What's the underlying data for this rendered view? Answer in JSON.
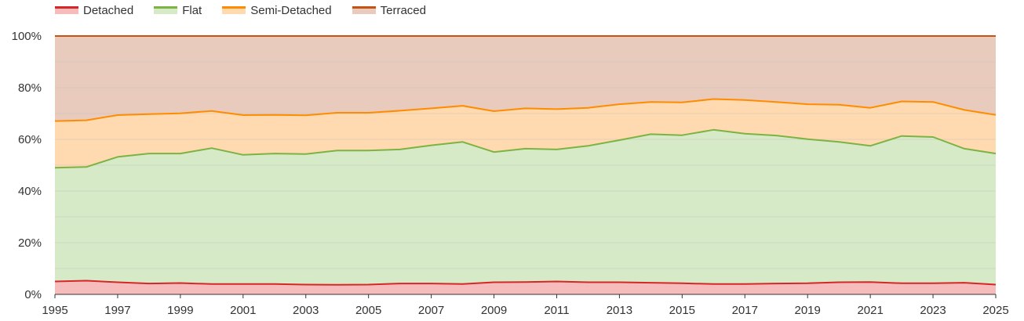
{
  "chart_data": {
    "type": "area",
    "stacked": "percent",
    "title": "",
    "xlabel": "",
    "ylabel": "",
    "x": [
      1995,
      1996,
      1997,
      1998,
      1999,
      2000,
      2001,
      2002,
      2003,
      2004,
      2005,
      2006,
      2007,
      2008,
      2009,
      2010,
      2011,
      2012,
      2013,
      2014,
      2015,
      2016,
      2017,
      2018,
      2019,
      2020,
      2021,
      2022,
      2023,
      2024,
      2025
    ],
    "x_ticks": [
      "1995",
      "1997",
      "1999",
      "2001",
      "2003",
      "2005",
      "2007",
      "2009",
      "2011",
      "2013",
      "2015",
      "2017",
      "2019",
      "2021",
      "2023",
      "2025"
    ],
    "y_ticks": [
      "0%",
      "20%",
      "40%",
      "60%",
      "80%",
      "100%"
    ],
    "ylim": [
      0,
      100
    ],
    "grid": true,
    "legend_position": "top-left",
    "series": [
      {
        "name": "Detached",
        "line_color": "#d62728",
        "fill_color": "#f6bcbc",
        "values": [
          5.0,
          5.3,
          4.7,
          4.2,
          4.4,
          4.0,
          4.0,
          4.0,
          3.8,
          3.7,
          3.8,
          4.2,
          4.2,
          4.0,
          4.7,
          4.8,
          5.0,
          4.7,
          4.7,
          4.5,
          4.3,
          4.0,
          4.0,
          4.2,
          4.3,
          4.7,
          4.8,
          4.3,
          4.3,
          4.5,
          3.8
        ]
      },
      {
        "name": "Flat",
        "line_color": "#7cb342",
        "fill_color": "#d7eac8",
        "values": [
          44.0,
          44.0,
          48.5,
          50.3,
          50.1,
          52.6,
          50.0,
          50.5,
          50.5,
          52.0,
          51.9,
          51.9,
          53.5,
          55.0,
          50.4,
          51.6,
          51.1,
          52.8,
          55.0,
          57.5,
          57.3,
          59.7,
          58.2,
          57.3,
          55.8,
          54.3,
          52.7,
          57.0,
          56.6,
          51.9,
          50.7
        ]
      },
      {
        "name": "Semi-Detached",
        "line_color": "#ff8c00",
        "fill_color": "#ffd9b0",
        "values": [
          18.1,
          18.1,
          16.2,
          15.3,
          15.6,
          14.4,
          15.4,
          15.0,
          15.0,
          14.6,
          14.6,
          15.0,
          14.3,
          14.0,
          15.8,
          15.6,
          15.6,
          14.7,
          13.9,
          12.5,
          12.7,
          11.9,
          13.0,
          13.0,
          13.5,
          14.4,
          14.7,
          13.4,
          13.6,
          15.0,
          15.0
        ]
      },
      {
        "name": "Terraced",
        "line_color": "#c45414",
        "fill_color": "#e8cbbd",
        "values": [
          32.9,
          32.6,
          30.6,
          30.2,
          29.9,
          29.0,
          30.6,
          30.5,
          30.7,
          29.7,
          29.7,
          28.9,
          28.0,
          27.0,
          29.1,
          28.0,
          28.3,
          27.8,
          26.4,
          25.5,
          25.7,
          24.4,
          24.8,
          25.5,
          26.4,
          26.6,
          27.8,
          25.3,
          25.5,
          28.6,
          30.5
        ]
      }
    ]
  }
}
